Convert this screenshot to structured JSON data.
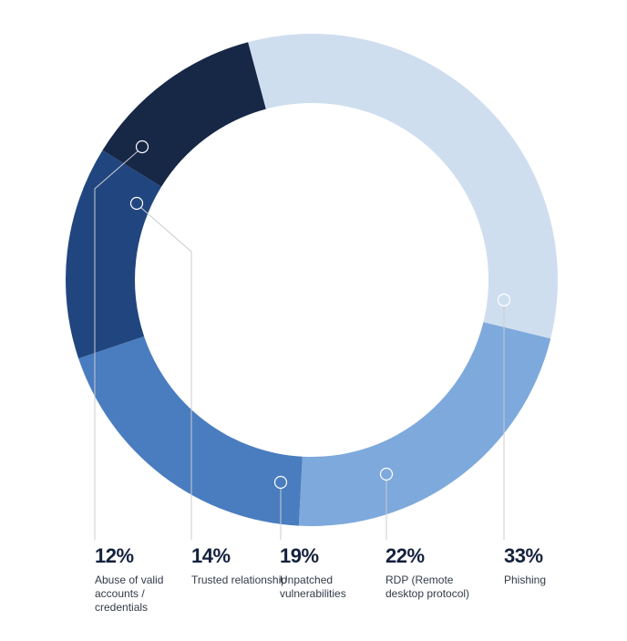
{
  "chart_data": {
    "type": "donut",
    "categories": [
      "Phishing",
      "RDP (Remote desktop protocol)",
      "Unpatched vulnerabilities",
      "Trusted relationship",
      "Abuse of valid accounts / credentials"
    ],
    "values": [
      33,
      22,
      19,
      14,
      12
    ],
    "value_labels": [
      "33%",
      "22%",
      "19%",
      "14%",
      "12%"
    ],
    "colors": [
      "#cfdeef",
      "#7ea9dc",
      "#4a7dbf",
      "#21467f",
      "#172746"
    ]
  }
}
